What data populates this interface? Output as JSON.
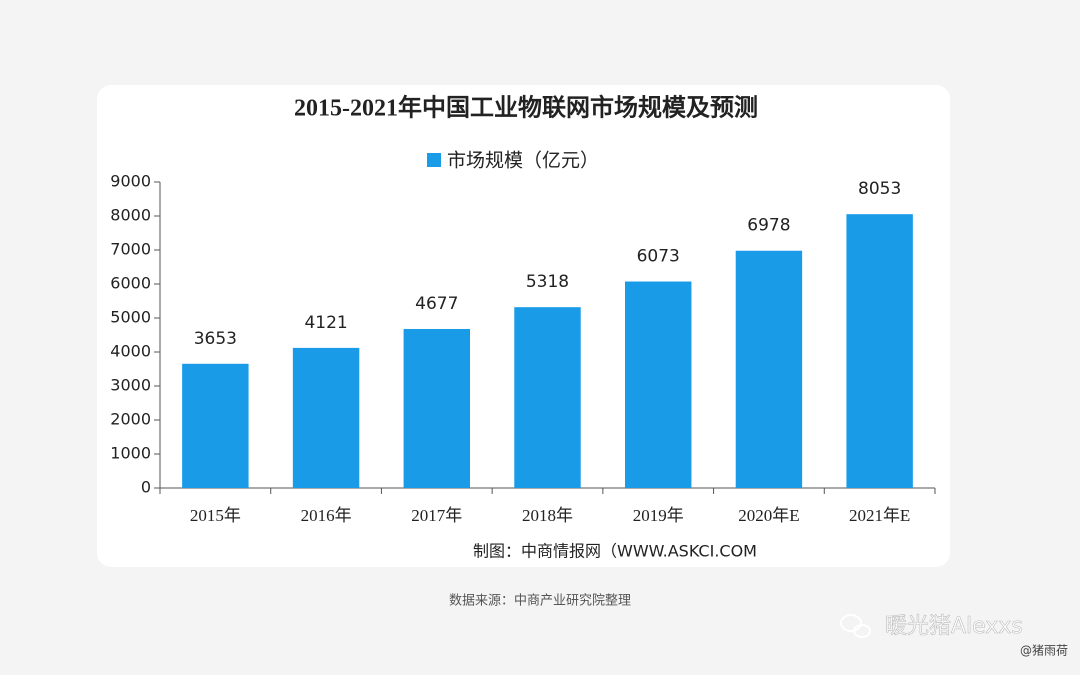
{
  "chart_data": {
    "type": "bar",
    "title": "2015-2021年中国工业物联网市场规模及预测",
    "categories": [
      "2015年",
      "2016年",
      "2017年",
      "2018年",
      "2019年",
      "2020年E",
      "2021年E"
    ],
    "series": [
      {
        "name": "市场规模（亿元）",
        "color": "#1a9be8",
        "values": [
          3653,
          4121,
          4677,
          5318,
          6073,
          6978,
          8053
        ]
      }
    ],
    "ylim": [
      0,
      9000
    ],
    "yticks": [
      0,
      1000,
      2000,
      3000,
      4000,
      5000,
      6000,
      7000,
      8000,
      9000
    ],
    "grid": false,
    "legend": "top",
    "credit": "制图：中商情报网（WWW.ASKCI.COM",
    "source": "数据来源：中商产业研究院整理"
  },
  "watermark": {
    "account": "暖光猪Alexxs",
    "author": "@猪雨荷"
  }
}
